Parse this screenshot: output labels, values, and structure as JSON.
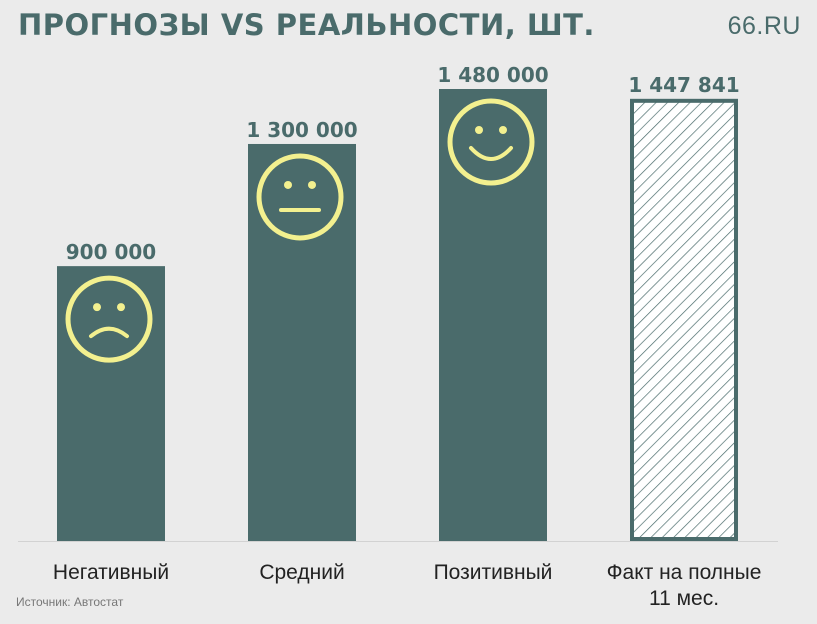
{
  "title": "ПРОГНОЗЫ VS РЕАЛЬНОСТИ, ШТ.",
  "brand": "66.RU",
  "source": "Источник: Автостат",
  "colors": {
    "bar": "#4a6b6b",
    "face": "#f3f08f",
    "hatch": "#4a6b6b",
    "text": "#4a6b6b"
  },
  "chart_data": {
    "type": "bar",
    "categories": [
      "Негативный",
      "Средний",
      "Позитивный",
      "Факт на полные 11 мес."
    ],
    "values": [
      900000,
      1300000,
      1480000,
      1447841
    ],
    "value_labels": [
      "900 000",
      "1 300 000",
      "1 480 000",
      "1 447 841"
    ],
    "faces": [
      "sad-face-icon",
      "neutral-face-icon",
      "happy-face-icon",
      null
    ],
    "bar_styles": [
      "solid",
      "solid",
      "solid",
      "hatched"
    ],
    "ylim": [
      0,
      1500000
    ],
    "grid": false,
    "title": "ПРОГНОЗЫ VS РЕАЛЬНОСТИ, ШТ."
  }
}
